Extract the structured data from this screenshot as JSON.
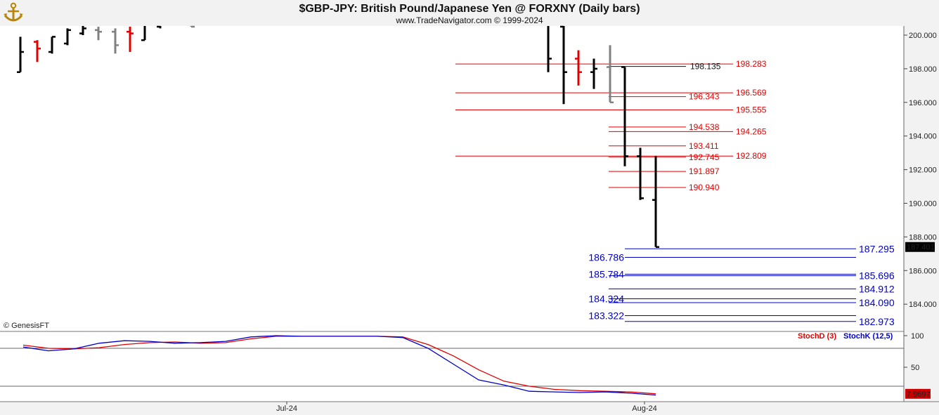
{
  "header": {
    "title": "$GBP-JPY:  British Pound/Japanese Yen @ FORXNY  (Daily bars)",
    "subtitle": "www.TradeNavigator.com © 1999-2024",
    "logo_icon": "anchor-logo-icon"
  },
  "watermark": "© GenesisFT",
  "colors": {
    "up_bar": "#000000",
    "down_bar": "#e00000",
    "neutral_bar": "#808080",
    "resistance": "#e00000",
    "support": "#0000cc",
    "stoch_d": "#e00000",
    "stoch_k": "#0000cc",
    "last_price_bg": "#000000",
    "stoch_last_bg": "#cc0000"
  },
  "chart_data": [
    {
      "type": "ohlc",
      "title": "$GBP-JPY:  British Pound/Japanese Yen @ FORXNY  (Daily bars)",
      "ylim": [
        182.5,
        201.0
      ],
      "y_ticks": [
        "200.000",
        "198.000",
        "196.000",
        "194.000",
        "192.000",
        "190.000",
        "188.000",
        "186.000",
        "184.000"
      ],
      "x_ticks": [
        "Jul-24",
        "Aug-24"
      ],
      "last_price": "187.401",
      "grid": false,
      "bars": [
        {
          "o": 197.8,
          "h": 199.9,
          "l": 197.8,
          "c": 199.0,
          "color": "up"
        },
        {
          "o": 199.6,
          "h": 199.7,
          "l": 198.4,
          "c": 199.2,
          "color": "down"
        },
        {
          "o": 199.0,
          "h": 199.9,
          "l": 198.9,
          "c": 199.9,
          "color": "up"
        },
        {
          "o": 199.5,
          "h": 200.4,
          "l": 199.4,
          "c": 200.3,
          "color": "up"
        },
        {
          "o": 200.1,
          "h": 200.6,
          "l": 200.0,
          "c": 200.4,
          "color": "up"
        },
        {
          "o": 200.3,
          "h": 200.5,
          "l": 199.7,
          "c": 200.2,
          "color": "neutral"
        },
        {
          "o": 200.2,
          "h": 200.4,
          "l": 198.9,
          "c": 199.4,
          "color": "neutral"
        },
        {
          "o": 200.2,
          "h": 200.5,
          "l": 199.0,
          "c": 200.1,
          "color": "down"
        },
        {
          "o": 199.7,
          "h": 200.6,
          "l": 199.7,
          "c": 200.6,
          "color": "up"
        },
        {
          "o": 200.5,
          "h": 200.8,
          "l": 200.4,
          "c": 200.7,
          "color": "up"
        },
        {
          "o": 200.7,
          "h": 200.9,
          "l": 200.5,
          "c": 200.5,
          "color": "neutral"
        },
        {
          "o": 200.8,
          "h": 201.0,
          "l": 197.8,
          "c": 198.6,
          "color": "up"
        },
        {
          "o": 200.5,
          "h": 201.0,
          "l": 195.9,
          "c": 197.8,
          "color": "up"
        },
        {
          "o": 198.6,
          "h": 199.1,
          "l": 197.0,
          "c": 197.8,
          "color": "down"
        },
        {
          "o": 197.8,
          "h": 198.6,
          "l": 196.8,
          "c": 198.0,
          "color": "up"
        },
        {
          "o": 198.1,
          "h": 199.4,
          "l": 196.0,
          "c": 196.0,
          "color": "neutral"
        },
        {
          "o": 198.1,
          "h": 198.1,
          "l": 192.2,
          "c": 192.8,
          "color": "up"
        },
        {
          "o": 192.8,
          "h": 193.3,
          "l": 190.2,
          "c": 190.3,
          "color": "up"
        },
        {
          "o": 190.2,
          "h": 192.8,
          "l": 187.4,
          "c": 187.4,
          "color": "up"
        }
      ],
      "resistance_levels": [
        {
          "value": 198.283,
          "label": "198.283",
          "side": "right",
          "color": "red"
        },
        {
          "value": 198.135,
          "label": "198.135",
          "side": "left",
          "color": "black"
        },
        {
          "value": 196.569,
          "label": "196.569",
          "side": "right",
          "color": "red"
        },
        {
          "value": 196.343,
          "label": "196.343",
          "side": "left",
          "color": "red"
        },
        {
          "value": 195.555,
          "label": "195.555",
          "side": "right",
          "color": "red"
        },
        {
          "value": 194.538,
          "label": "194.538",
          "side": "left",
          "color": "red"
        },
        {
          "value": 194.265,
          "label": "194.265",
          "side": "right",
          "color": "red"
        },
        {
          "value": 193.411,
          "label": "193.411",
          "side": "left",
          "color": "red"
        },
        {
          "value": 192.809,
          "label": "192.809",
          "side": "right",
          "color": "red"
        },
        {
          "value": 192.745,
          "label": "192.745",
          "side": "left",
          "color": "red"
        },
        {
          "value": 191.897,
          "label": "191.897",
          "side": "left",
          "color": "red"
        },
        {
          "value": 190.94,
          "label": "190.940",
          "side": "left",
          "color": "red"
        }
      ],
      "support_levels": [
        {
          "value": 187.295,
          "label": "187.295",
          "side": "right"
        },
        {
          "value": 186.786,
          "label": "186.786",
          "side": "left"
        },
        {
          "value": 185.784,
          "label": "185.784",
          "side": "left"
        },
        {
          "value": 185.696,
          "label": "185.696",
          "side": "right"
        },
        {
          "value": 184.912,
          "label": "184.912",
          "side": "right"
        },
        {
          "value": 184.324,
          "label": "184.324",
          "side": "left"
        },
        {
          "value": 184.09,
          "label": "184.090",
          "side": "right"
        },
        {
          "value": 183.322,
          "label": "183.322",
          "side": "left"
        },
        {
          "value": 182.973,
          "label": "182.973",
          "side": "right"
        }
      ]
    },
    {
      "type": "line",
      "ylim": [
        0,
        100
      ],
      "y_ticks": [
        "100",
        "50"
      ],
      "last_value": "7.9697",
      "reference_lines": [
        80,
        20
      ],
      "series": [
        {
          "name": "StochD (3)",
          "color": "red",
          "values": [
            85,
            80,
            79,
            81,
            86,
            89,
            90,
            88,
            89,
            95,
            99,
            99,
            99,
            99,
            99,
            98,
            86,
            68,
            46,
            28,
            20,
            15,
            13,
            12,
            11,
            8
          ]
        },
        {
          "name": "StochK (12,5)",
          "color": "blue",
          "values": [
            82,
            76,
            79,
            88,
            92,
            91,
            88,
            89,
            91,
            98,
            100,
            99,
            99,
            99,
            99,
            97,
            80,
            55,
            30,
            22,
            12,
            11,
            10,
            11,
            9,
            6
          ]
        }
      ]
    }
  ]
}
